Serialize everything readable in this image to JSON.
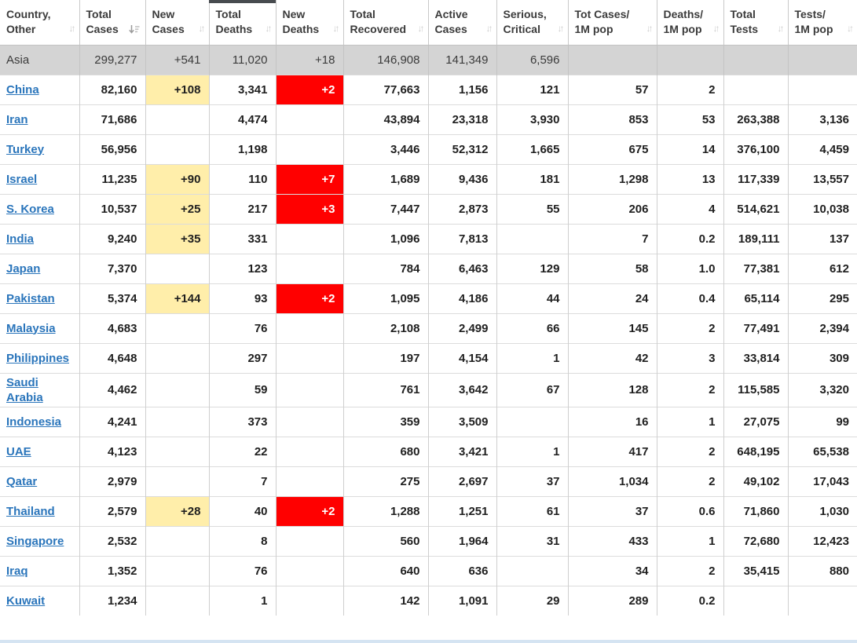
{
  "table": {
    "columns": [
      {
        "id": "country",
        "label": "Country,\nOther",
        "sort": "both"
      },
      {
        "id": "total_cases",
        "label": "Total\nCases",
        "sort": "desc"
      },
      {
        "id": "new_cases",
        "label": "New\nCases",
        "sort": "both"
      },
      {
        "id": "total_deaths",
        "label": "Total\nDeaths",
        "sort": "both"
      },
      {
        "id": "new_deaths",
        "label": "New\nDeaths",
        "sort": "both"
      },
      {
        "id": "total_recovered",
        "label": "Total\nRecovered",
        "sort": "both"
      },
      {
        "id": "active_cases",
        "label": "Active\nCases",
        "sort": "both"
      },
      {
        "id": "serious_critical",
        "label": "Serious,\nCritical",
        "sort": "both"
      },
      {
        "id": "cases_per_1m",
        "label": "Tot Cases/\n1M pop",
        "sort": "both"
      },
      {
        "id": "deaths_per_1m",
        "label": "Deaths/\n1M pop",
        "sort": "both"
      },
      {
        "id": "total_tests",
        "label": "Total\nTests",
        "sort": "both"
      },
      {
        "id": "tests_per_1m",
        "label": "Tests/\n1M pop",
        "sort": "both"
      }
    ],
    "rows": [
      {
        "name": "Asia",
        "region": true,
        "values": [
          "299,277",
          "+541",
          "11,020",
          "+18",
          "146,908",
          "141,349",
          "6,596",
          "",
          "",
          "",
          ""
        ]
      },
      {
        "name": "China",
        "hl_new_cases": true,
        "hl_new_deaths": true,
        "values": [
          "82,160",
          "+108",
          "3,341",
          "+2",
          "77,663",
          "1,156",
          "121",
          "57",
          "2",
          "",
          ""
        ]
      },
      {
        "name": "Iran",
        "values": [
          "71,686",
          "",
          "4,474",
          "",
          "43,894",
          "23,318",
          "3,930",
          "853",
          "53",
          "263,388",
          "3,136"
        ]
      },
      {
        "name": "Turkey",
        "values": [
          "56,956",
          "",
          "1,198",
          "",
          "3,446",
          "52,312",
          "1,665",
          "675",
          "14",
          "376,100",
          "4,459"
        ]
      },
      {
        "name": "Israel",
        "hl_new_cases": true,
        "hl_new_deaths": true,
        "values": [
          "11,235",
          "+90",
          "110",
          "+7",
          "1,689",
          "9,436",
          "181",
          "1,298",
          "13",
          "117,339",
          "13,557"
        ]
      },
      {
        "name": "S. Korea",
        "hl_new_cases": true,
        "hl_new_deaths": true,
        "values": [
          "10,537",
          "+25",
          "217",
          "+3",
          "7,447",
          "2,873",
          "55",
          "206",
          "4",
          "514,621",
          "10,038"
        ]
      },
      {
        "name": "India",
        "hl_new_cases": true,
        "values": [
          "9,240",
          "+35",
          "331",
          "",
          "1,096",
          "7,813",
          "",
          "7",
          "0.2",
          "189,111",
          "137"
        ]
      },
      {
        "name": "Japan",
        "values": [
          "7,370",
          "",
          "123",
          "",
          "784",
          "6,463",
          "129",
          "58",
          "1.0",
          "77,381",
          "612"
        ]
      },
      {
        "name": "Pakistan",
        "hl_new_cases": true,
        "hl_new_deaths": true,
        "values": [
          "5,374",
          "+144",
          "93",
          "+2",
          "1,095",
          "4,186",
          "44",
          "24",
          "0.4",
          "65,114",
          "295"
        ]
      },
      {
        "name": "Malaysia",
        "values": [
          "4,683",
          "",
          "76",
          "",
          "2,108",
          "2,499",
          "66",
          "145",
          "2",
          "77,491",
          "2,394"
        ]
      },
      {
        "name": "Philippines",
        "values": [
          "4,648",
          "",
          "297",
          "",
          "197",
          "4,154",
          "1",
          "42",
          "3",
          "33,814",
          "309"
        ]
      },
      {
        "name": "Saudi Arabia",
        "values": [
          "4,462",
          "",
          "59",
          "",
          "761",
          "3,642",
          "67",
          "128",
          "2",
          "115,585",
          "3,320"
        ]
      },
      {
        "name": "Indonesia",
        "values": [
          "4,241",
          "",
          "373",
          "",
          "359",
          "3,509",
          "",
          "16",
          "1",
          "27,075",
          "99"
        ]
      },
      {
        "name": "UAE",
        "values": [
          "4,123",
          "",
          "22",
          "",
          "680",
          "3,421",
          "1",
          "417",
          "2",
          "648,195",
          "65,538"
        ]
      },
      {
        "name": "Qatar",
        "values": [
          "2,979",
          "",
          "7",
          "",
          "275",
          "2,697",
          "37",
          "1,034",
          "2",
          "49,102",
          "17,043"
        ]
      },
      {
        "name": "Thailand",
        "hl_new_cases": true,
        "hl_new_deaths": true,
        "values": [
          "2,579",
          "+28",
          "40",
          "+2",
          "1,288",
          "1,251",
          "61",
          "37",
          "0.6",
          "71,860",
          "1,030"
        ]
      },
      {
        "name": "Singapore",
        "values": [
          "2,532",
          "",
          "8",
          "",
          "560",
          "1,964",
          "31",
          "433",
          "1",
          "72,680",
          "12,423"
        ]
      },
      {
        "name": "Iraq",
        "values": [
          "1,352",
          "",
          "76",
          "",
          "640",
          "636",
          "",
          "34",
          "2",
          "35,415",
          "880"
        ]
      },
      {
        "name": "Kuwait",
        "values": [
          "1,234",
          "",
          "1",
          "",
          "142",
          "1,091",
          "29",
          "289",
          "0.2",
          "",
          ""
        ]
      }
    ]
  },
  "colors": {
    "new_cases_bg": "#FFEEAA",
    "new_deaths_bg": "#FF0000",
    "region_row_bg": "#D4D4D4",
    "link": "#2A75BB",
    "next_row_edge": "#D5E4F2"
  }
}
